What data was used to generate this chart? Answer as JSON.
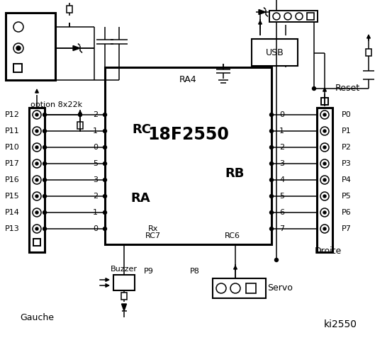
{
  "bg": "#ffffff",
  "lc": "#000000",
  "chip_label": "18F2550",
  "ra4": "RA4",
  "rc_lbl": "RC",
  "ra_lbl": "RA",
  "rb_lbl": "RB",
  "rc7": "RC7",
  "rc6": "RC6",
  "rx": "Rx",
  "usb": "USB",
  "reset": "Reset",
  "gauche": "Gauche",
  "droite": "Droite",
  "p9": "P9",
  "p8": "P8",
  "servo": "Servo",
  "buzzer": "Buzzer",
  "option": "option 8x22k",
  "ki": "ki2550",
  "left_labels": [
    "P12",
    "P11",
    "P10",
    "P17",
    "P16",
    "P15",
    "P14",
    "P13"
  ],
  "right_labels": [
    "P0",
    "P1",
    "P2",
    "P3",
    "P4",
    "P5",
    "P6",
    "P7"
  ],
  "rc_pins": [
    "2",
    "1",
    "0"
  ],
  "ra_pins": [
    "5",
    "3",
    "2",
    "1",
    "0"
  ],
  "rb_pins": [
    "0",
    "1",
    "2",
    "3",
    "4",
    "5",
    "6",
    "7"
  ]
}
